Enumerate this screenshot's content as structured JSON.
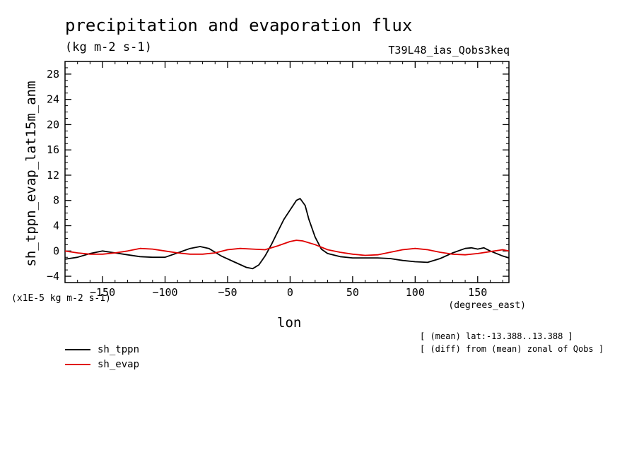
{
  "header": {
    "title": "precipitation and evaporation flux",
    "units": "(kg m-2 s-1)",
    "run": "T39L48_ias_Qobs3keq"
  },
  "notes": [
    "[ (mean) lat:-13.388..13.388 ]",
    "[ (diff) from (mean) zonal of Qobs ]"
  ],
  "chart_data": {
    "type": "line",
    "title": "precipitation and evaporation flux",
    "xlabel": "lon",
    "xunits": "(degrees_east)",
    "ylabel": "sh_tppn_evap_lat15m_anm",
    "yscale_label": "(x1E-5 kg m-2 s-1)",
    "xlim": [
      -180,
      175
    ],
    "ylim": [
      -5,
      30
    ],
    "xticks": [
      -150,
      -100,
      -50,
      0,
      50,
      100,
      150
    ],
    "yticks": [
      -4,
      0,
      4,
      8,
      12,
      16,
      20,
      24,
      28
    ],
    "grid": false,
    "legend_position": "bottom-left",
    "series": [
      {
        "name": "sh_tppn",
        "color": "#000000",
        "x": [
          -180,
          -170,
          -160,
          -150,
          -140,
          -130,
          -120,
          -110,
          -100,
          -90,
          -80,
          -72,
          -65,
          -55,
          -45,
          -35,
          -30,
          -25,
          -20,
          -15,
          -10,
          -5,
          0,
          5,
          8,
          12,
          15,
          20,
          25,
          30,
          40,
          50,
          60,
          70,
          80,
          90,
          100,
          110,
          120,
          130,
          140,
          145,
          150,
          155,
          160,
          170,
          175
        ],
        "y": [
          -1.3,
          -1.0,
          -0.4,
          0.0,
          -0.3,
          -0.6,
          -0.9,
          -1.0,
          -1.0,
          -0.3,
          0.4,
          0.7,
          0.4,
          -0.8,
          -1.7,
          -2.6,
          -2.8,
          -2.2,
          -0.8,
          1.0,
          3.0,
          5.0,
          6.5,
          8.0,
          8.3,
          7.2,
          5.0,
          2.2,
          0.3,
          -0.4,
          -0.9,
          -1.1,
          -1.1,
          -1.1,
          -1.2,
          -1.5,
          -1.7,
          -1.8,
          -1.2,
          -0.3,
          0.4,
          0.5,
          0.3,
          0.5,
          0.0,
          -0.8,
          -1.1
        ]
      },
      {
        "name": "sh_evap",
        "color": "#e00000",
        "x": [
          -180,
          -170,
          -160,
          -150,
          -140,
          -130,
          -120,
          -110,
          -100,
          -90,
          -80,
          -70,
          -60,
          -50,
          -40,
          -30,
          -20,
          -10,
          0,
          5,
          10,
          20,
          30,
          40,
          50,
          60,
          70,
          80,
          90,
          100,
          110,
          120,
          130,
          140,
          150,
          160,
          170,
          175
        ],
        "y": [
          0.0,
          -0.3,
          -0.5,
          -0.5,
          -0.3,
          0.0,
          0.4,
          0.3,
          0.0,
          -0.3,
          -0.5,
          -0.5,
          -0.3,
          0.2,
          0.4,
          0.3,
          0.2,
          0.8,
          1.5,
          1.7,
          1.6,
          1.0,
          0.2,
          -0.2,
          -0.5,
          -0.7,
          -0.6,
          -0.2,
          0.2,
          0.4,
          0.2,
          -0.2,
          -0.5,
          -0.6,
          -0.4,
          -0.1,
          0.2,
          0.0
        ]
      }
    ]
  }
}
